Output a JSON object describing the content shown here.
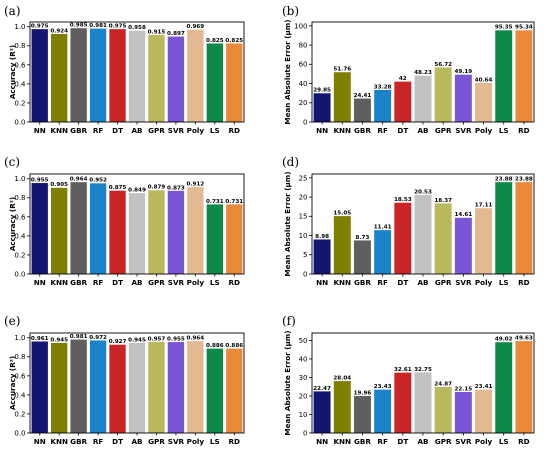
{
  "figure": {
    "colors": [
      "#131570",
      "#7f7f00",
      "#5f5f5f",
      "#1b84c8",
      "#c92524",
      "#c2c2c2",
      "#b9b85c",
      "#7a55d6",
      "#e2b990",
      "#0d8a49",
      "#e88a3a"
    ]
  },
  "chart_data": [
    {
      "panel": "(a)",
      "type": "bar",
      "categories": [
        "NN",
        "KNN",
        "GBR",
        "RF",
        "DT",
        "AB",
        "GPR",
        "SVR",
        "Poly",
        "LS",
        "RD"
      ],
      "values": [
        0.975,
        0.924,
        0.985,
        0.981,
        0.975,
        0.958,
        0.915,
        0.897,
        0.969,
        0.825,
        0.825
      ],
      "labels": [
        "0.975",
        "0.924",
        "0.985",
        "0.981",
        "0.975",
        "0.958",
        "0.915",
        "0.897",
        "0.969",
        "0.825",
        "0.825"
      ],
      "ylabel": "Accuracy (R²)",
      "ylim": [
        0,
        1.05
      ],
      "yticks": [
        0,
        0.2,
        0.4,
        0.6,
        0.8,
        1.0
      ],
      "ytick_labels": [
        "0.0",
        "0.2",
        "0.4",
        "0.6",
        "0.8",
        "1.0"
      ]
    },
    {
      "panel": "(b)",
      "type": "bar",
      "categories": [
        "NN",
        "KNN",
        "GBR",
        "RF",
        "DT",
        "AB",
        "GPR",
        "SVR",
        "Poly",
        "LS",
        "RD"
      ],
      "values": [
        29.85,
        51.76,
        24.41,
        33.28,
        42,
        48.23,
        56.72,
        49.19,
        40.64,
        95.35,
        95.34
      ],
      "labels": [
        "29.85",
        "51.76",
        "24.41",
        "33.28",
        "42",
        "48.23",
        "56.72",
        "49.19",
        "40.64",
        "95.35",
        "95.34"
      ],
      "ylabel": "Mean Absolute Error (μm)",
      "ylim": [
        0,
        104
      ],
      "yticks": [
        0,
        20,
        40,
        60,
        80,
        100
      ],
      "ytick_labels": [
        "0",
        "20",
        "40",
        "60",
        "80",
        "100"
      ]
    },
    {
      "panel": "(c)",
      "type": "bar",
      "categories": [
        "NN",
        "KNN",
        "GBR",
        "RF",
        "DT",
        "AB",
        "GPR",
        "SVR",
        "Poly",
        "LS",
        "RD"
      ],
      "values": [
        0.955,
        0.905,
        0.964,
        0.952,
        0.875,
        0.849,
        0.879,
        0.873,
        0.912,
        0.731,
        0.731
      ],
      "labels": [
        "0.955",
        "0.905",
        "0.964",
        "0.952",
        "0.875",
        "0.849",
        "0.879",
        "0.873",
        "0.912",
        "0.731",
        "0.731"
      ],
      "ylabel": "Accuracy (R²)",
      "ylim": [
        0,
        1.05
      ],
      "yticks": [
        0,
        0.2,
        0.4,
        0.6,
        0.8,
        1.0
      ],
      "ytick_labels": [
        "0.0",
        "0.2",
        "0.4",
        "0.6",
        "0.8",
        "1.0"
      ]
    },
    {
      "panel": "(d)",
      "type": "bar",
      "categories": [
        "NN",
        "KNN",
        "GBR",
        "RF",
        "DT",
        "AB",
        "GPR",
        "SVR",
        "Poly",
        "LS",
        "RD"
      ],
      "values": [
        8.98,
        15.05,
        8.73,
        11.41,
        18.53,
        20.53,
        18.37,
        14.61,
        17.11,
        23.88,
        23.88
      ],
      "labels": [
        "8.98",
        "15.05",
        "8.73",
        "11.41",
        "18.53",
        "20.53",
        "18.37",
        "14.61",
        "17.11",
        "23.88",
        "23.88"
      ],
      "ylabel": "Mean Absolute Error (μm)",
      "ylim": [
        0,
        26
      ],
      "yticks": [
        0,
        5,
        10,
        15,
        20,
        25
      ],
      "ytick_labels": [
        "0",
        "5",
        "10",
        "15",
        "20",
        "25"
      ]
    },
    {
      "panel": "(e)",
      "type": "bar",
      "categories": [
        "NN",
        "KNN",
        "GBR",
        "RF",
        "DT",
        "AB",
        "GPR",
        "SVR",
        "Poly",
        "LS",
        "RD"
      ],
      "values": [
        0.961,
        0.945,
        0.981,
        0.972,
        0.927,
        0.945,
        0.957,
        0.955,
        0.964,
        0.886,
        0.886
      ],
      "labels": [
        "0.961",
        "0.945",
        "0.981",
        "0.972",
        "0.927",
        "0.945",
        "0.957",
        "0.955",
        "0.964",
        "0.886",
        "0.886"
      ],
      "ylabel": "Accuracy (R²)",
      "ylim": [
        0,
        1.05
      ],
      "yticks": [
        0,
        0.2,
        0.4,
        0.6,
        0.8,
        1.0
      ],
      "ytick_labels": [
        "0.0",
        "0.2",
        "0.4",
        "0.6",
        "0.8",
        "1.0"
      ]
    },
    {
      "panel": "(f)",
      "type": "bar",
      "categories": [
        "NN",
        "KNN",
        "GBR",
        "RF",
        "DT",
        "AB",
        "GPR",
        "SVR",
        "Poly",
        "LS",
        "RD"
      ],
      "values": [
        22.47,
        28.04,
        19.96,
        23.43,
        32.61,
        32.75,
        24.87,
        22.15,
        23.41,
        49.02,
        49.63
      ],
      "labels": [
        "22.47",
        "28.04",
        "19.96",
        "23.43",
        "32.61",
        "32.75",
        "24.87",
        "22.15",
        "23.41",
        "49.02",
        "49.63"
      ],
      "ylabel": "Mean Absolute Error (μm)",
      "ylim": [
        0,
        54
      ],
      "yticks": [
        0,
        10,
        20,
        30,
        40,
        50
      ],
      "ytick_labels": [
        "0",
        "10",
        "20",
        "30",
        "40",
        "50"
      ]
    }
  ]
}
